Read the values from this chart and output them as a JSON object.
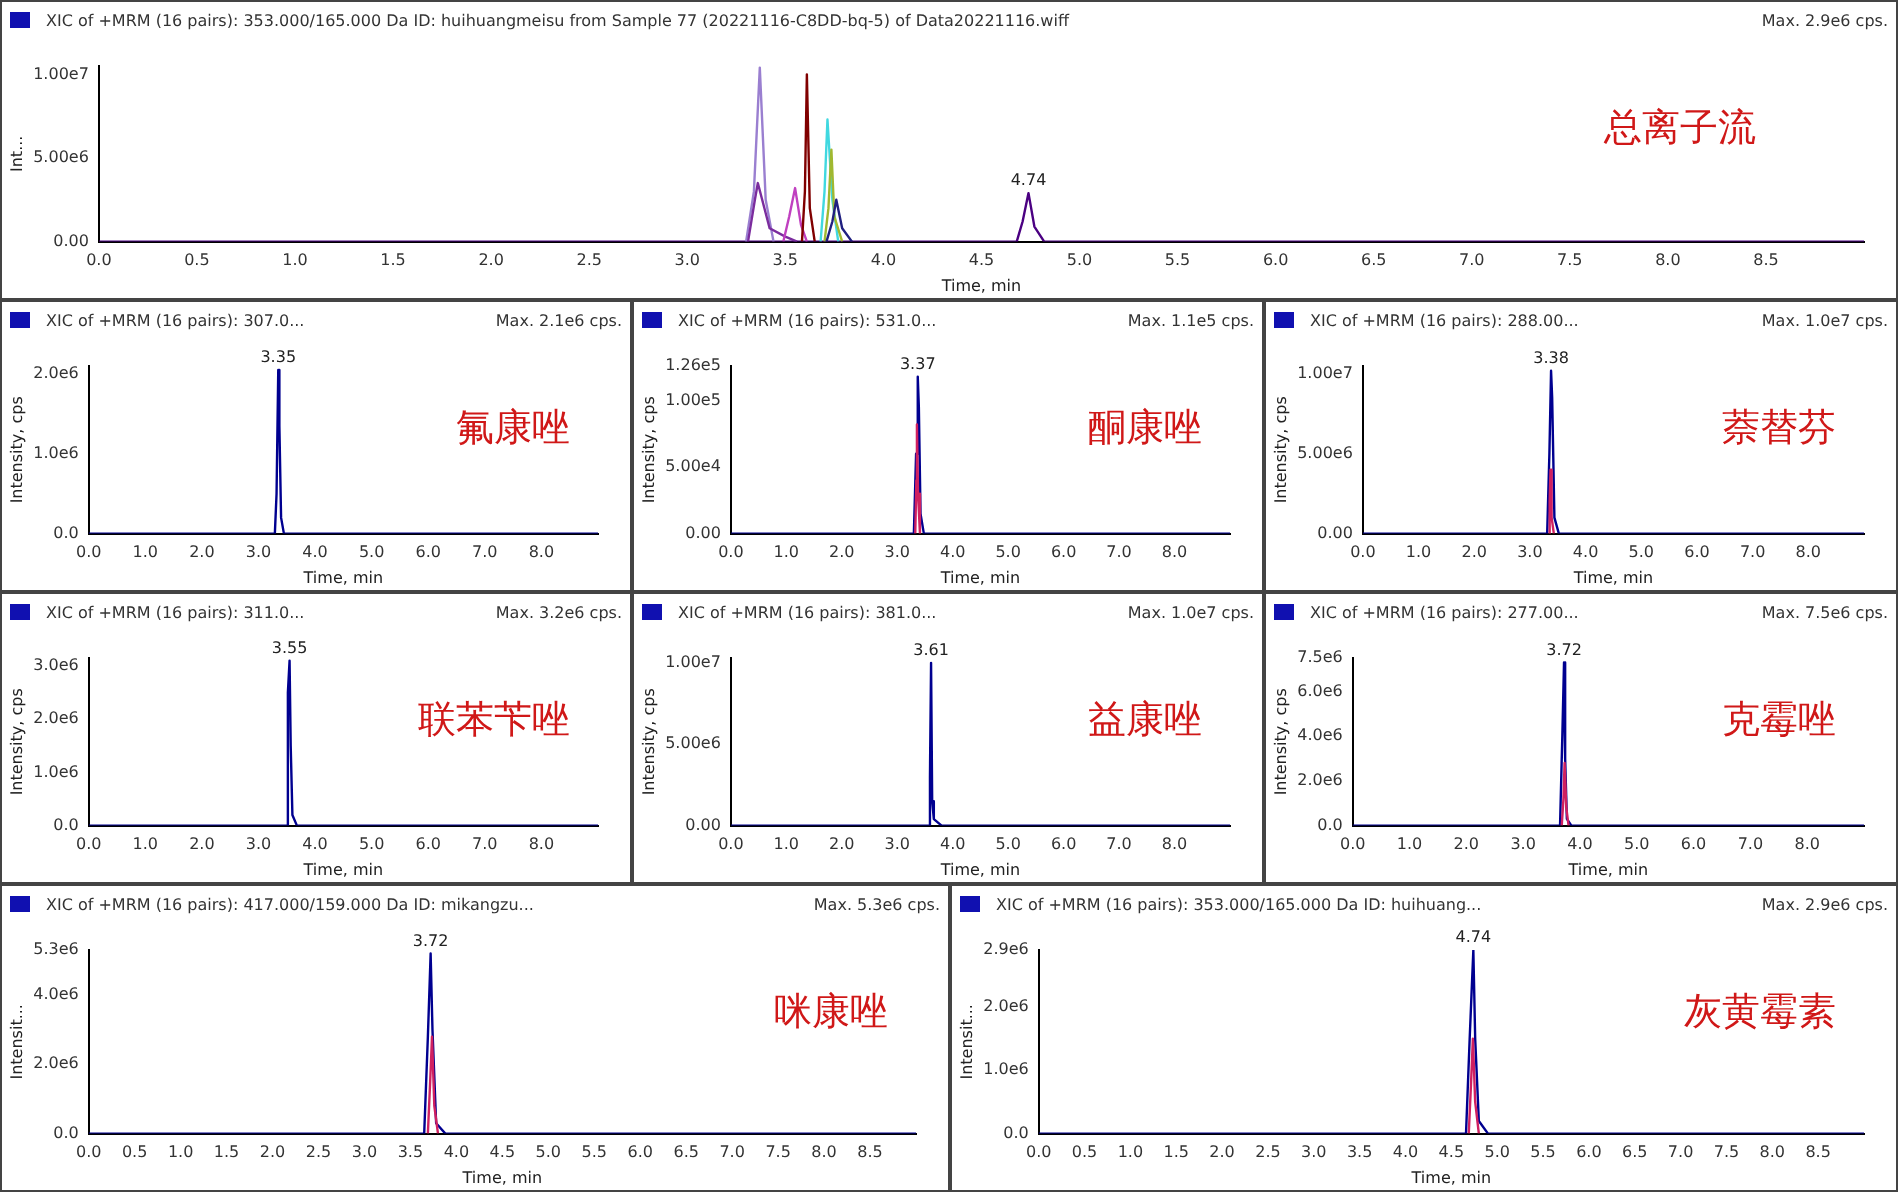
{
  "chart_data": [
    {
      "type": "line",
      "title": "XIC of +MRM (16 pairs): 353.000/165.000 Da ID: huihuangmeisu from Sample 77 (20221116-C8DD-bq-5) of Data20221116.wiff",
      "subtitle": "Max. 2.9e6 cps.",
      "xlabel": "Time, min",
      "ylabel": "Int...",
      "annotations": [
        "总离子流",
        {
          "text": "4.74",
          "x": 4.74,
          "y": 2900000
        }
      ],
      "xlim": [
        0,
        9
      ],
      "ylim": [
        0,
        10500000
      ],
      "xticks": [
        {
          "value": 0,
          "label": "0.0"
        },
        0.5,
        {
          "value": 1,
          "label": "1.0"
        },
        1.5,
        {
          "value": 2,
          "label": "2.0"
        },
        2.5,
        {
          "value": 3,
          "label": "3.0"
        },
        3.5,
        {
          "value": 4,
          "label": "4.0"
        },
        4.5,
        {
          "value": 5,
          "label": "5.0"
        },
        5.5,
        {
          "value": 6,
          "label": "6.0"
        },
        6.5,
        {
          "value": 7,
          "label": "7.0"
        },
        7.5,
        {
          "value": 8,
          "label": "8.0"
        },
        8.5
      ],
      "yticks": [
        {
          "value": 0,
          "label": "0.00"
        },
        {
          "value": 5000000,
          "label": "5.00e6"
        },
        {
          "value": 10000000,
          "label": "1.00e7"
        }
      ],
      "grid": false,
      "series": [
        {
          "color": "#4b0082",
          "x": [
            0,
            4.68,
            4.71,
            4.74,
            4.77,
            4.82,
            9
          ],
          "values": [
            0,
            0,
            1200000,
            2900000,
            900000,
            0,
            0
          ]
        },
        {
          "color": "#9a7fd0",
          "x": [
            3.3,
            3.34,
            3.37,
            3.4,
            3.44
          ],
          "values": [
            0,
            3000000,
            10400000,
            2500000,
            0
          ]
        },
        {
          "color": "#7b2c9e",
          "x": [
            3.31,
            3.345,
            3.36,
            3.42,
            3.5,
            3.56
          ],
          "values": [
            0,
            2500000,
            3500000,
            800000,
            300000,
            0
          ]
        },
        {
          "color": "#c040c0",
          "x": [
            3.49,
            3.52,
            3.55,
            3.58,
            3.61
          ],
          "values": [
            0,
            1500000,
            3200000,
            1000000,
            0
          ]
        },
        {
          "color": "#800000",
          "x": [
            3.585,
            3.6,
            3.61,
            3.625,
            3.65
          ],
          "values": [
            0,
            3000000,
            10000000,
            2000000,
            0
          ]
        },
        {
          "color": "#40d8e0",
          "x": [
            3.68,
            3.7,
            3.715,
            3.74,
            3.77
          ],
          "values": [
            0,
            3000000,
            7300000,
            2500000,
            0
          ]
        },
        {
          "color": "#a0b830",
          "x": [
            3.7,
            3.72,
            3.735,
            3.75,
            3.79
          ],
          "values": [
            0,
            2000000,
            5500000,
            1500000,
            0
          ]
        },
        {
          "color": "#202080",
          "x": [
            3.71,
            3.74,
            3.76,
            3.79,
            3.84
          ],
          "values": [
            0,
            1200000,
            2500000,
            800000,
            0
          ]
        }
      ]
    },
    {
      "type": "line",
      "title": "XIC of +MRM (16 pairs): 307.0...",
      "subtitle": "Max. 2.1e6 cps.",
      "xlabel": "Time, min",
      "ylabel": "Intensity, cps",
      "annotations": [
        "氟康唑",
        {
          "text": "3.35",
          "x": 3.35,
          "y": 2050000
        }
      ],
      "xlim": [
        0,
        9
      ],
      "ylim": [
        0,
        2100000
      ],
      "xticks": [
        {
          "value": 0,
          "label": "0.0"
        },
        {
          "value": 1,
          "label": "1.0"
        },
        {
          "value": 2,
          "label": "2.0"
        },
        {
          "value": 3,
          "label": "3.0"
        },
        {
          "value": 4,
          "label": "4.0"
        },
        {
          "value": 5,
          "label": "5.0"
        },
        {
          "value": 6,
          "label": "6.0"
        },
        {
          "value": 7,
          "label": "7.0"
        },
        {
          "value": 8,
          "label": "8.0"
        }
      ],
      "yticks": [
        {
          "value": 0,
          "label": "0.0"
        },
        {
          "value": 1000000,
          "label": "1.0e6"
        },
        {
          "value": 2000000,
          "label": "2.0e6"
        }
      ],
      "grid": false,
      "series": [
        {
          "color": "#000090",
          "x": [
            0,
            3.29,
            3.32,
            3.35,
            3.37,
            3.4,
            3.45,
            9
          ],
          "values": [
            0,
            0,
            500000,
            2050000,
            1350000,
            200000,
            0,
            0
          ]
        }
      ]
    },
    {
      "type": "line",
      "title": "XIC of +MRM (16 pairs): 531.0...",
      "subtitle": "Max. 1.1e5 cps.",
      "xlabel": "Time, min",
      "ylabel": "Intensity, cps",
      "annotations": [
        "酮康唑",
        {
          "text": "3.37",
          "x": 3.37,
          "y": 118000
        }
      ],
      "xlim": [
        0,
        9
      ],
      "ylim": [
        0,
        126000
      ],
      "xticks": [
        {
          "value": 0,
          "label": "0.0"
        },
        {
          "value": 1,
          "label": "1.0"
        },
        {
          "value": 2,
          "label": "2.0"
        },
        {
          "value": 3,
          "label": "3.0"
        },
        {
          "value": 4,
          "label": "4.0"
        },
        {
          "value": 5,
          "label": "5.0"
        },
        {
          "value": 6,
          "label": "6.0"
        },
        {
          "value": 7,
          "label": "7.0"
        },
        {
          "value": 8,
          "label": "8.0"
        }
      ],
      "yticks": [
        {
          "value": 0,
          "label": "0.00"
        },
        {
          "value": 50000,
          "label": "5.00e4"
        },
        {
          "value": 100000,
          "label": "1.00e5"
        },
        {
          "value": 126000,
          "label": "1.26e5"
        }
      ],
      "grid": false,
      "series": [
        {
          "color": "#000090",
          "x": [
            0,
            3.3,
            3.34,
            3.37,
            3.39,
            3.42,
            3.48,
            9
          ],
          "values": [
            0,
            0,
            60000,
            118000,
            95000,
            15000,
            0,
            0
          ]
        },
        {
          "color": "#d02060",
          "x": [
            3.325,
            3.345,
            3.355,
            3.375,
            3.41
          ],
          "values": [
            0,
            40000,
            82000,
            30000,
            0
          ]
        }
      ]
    },
    {
      "type": "line",
      "title": "XIC of +MRM (16 pairs): 288.00...",
      "subtitle": "Max. 1.0e7 cps.",
      "xlabel": "Time, min",
      "ylabel": "Intensity, cps",
      "annotations": [
        "萘替芬",
        {
          "text": "3.38",
          "x": 3.38,
          "y": 10200000
        }
      ],
      "xlim": [
        0,
        9
      ],
      "ylim": [
        0,
        10500000
      ],
      "xticks": [
        {
          "value": 0,
          "label": "0.0"
        },
        {
          "value": 1,
          "label": "1.0"
        },
        {
          "value": 2,
          "label": "2.0"
        },
        {
          "value": 3,
          "label": "3.0"
        },
        {
          "value": 4,
          "label": "4.0"
        },
        {
          "value": 5,
          "label": "5.0"
        },
        {
          "value": 6,
          "label": "6.0"
        },
        {
          "value": 7,
          "label": "7.0"
        },
        {
          "value": 8,
          "label": "8.0"
        }
      ],
      "yticks": [
        {
          "value": 0,
          "label": "0.00"
        },
        {
          "value": 5000000,
          "label": "5.00e6"
        },
        {
          "value": 10000000,
          "label": "1.00e7"
        }
      ],
      "grid": false,
      "series": [
        {
          "color": "#000090",
          "x": [
            0,
            3.31,
            3.35,
            3.38,
            3.4,
            3.44,
            3.52,
            9
          ],
          "values": [
            0,
            0,
            5000000,
            10200000,
            8500000,
            1000000,
            0,
            0
          ]
        },
        {
          "color": "#d02060",
          "x": [
            3.335,
            3.355,
            3.37,
            3.39,
            3.43
          ],
          "values": [
            0,
            2000000,
            4000000,
            1000000,
            0
          ]
        }
      ]
    },
    {
      "type": "line",
      "title": "XIC of +MRM (16 pairs): 311.0...",
      "subtitle": "Max. 3.2e6 cps.",
      "xlabel": "Time, min",
      "ylabel": "Intensity, cps",
      "annotations": [
        "联苯苄唑",
        {
          "text": "3.55",
          "x": 3.55,
          "y": 3100000
        }
      ],
      "xlim": [
        0,
        9
      ],
      "ylim": [
        0,
        3150000
      ],
      "xticks": [
        {
          "value": 0,
          "label": "0.0"
        },
        {
          "value": 1,
          "label": "1.0"
        },
        {
          "value": 2,
          "label": "2.0"
        },
        {
          "value": 3,
          "label": "3.0"
        },
        {
          "value": 4,
          "label": "4.0"
        },
        {
          "value": 5,
          "label": "5.0"
        },
        {
          "value": 6,
          "label": "6.0"
        },
        {
          "value": 7,
          "label": "7.0"
        },
        {
          "value": 8,
          "label": "8.0"
        }
      ],
      "yticks": [
        {
          "value": 0,
          "label": "0.0"
        },
        {
          "value": 1000000,
          "label": "1.0e6"
        },
        {
          "value": 2000000,
          "label": "2.0e6"
        },
        {
          "value": 3000000,
          "label": "3.0e6"
        }
      ],
      "grid": false,
      "series": [
        {
          "color": "#000090",
          "x": [
            0,
            3.49,
            3.52,
            3.55,
            3.57,
            3.6,
            3.68,
            9
          ],
          "values": [
            0,
            0,
            2500000,
            3100000,
            1500000,
            200000,
            0,
            0
          ]
        }
      ]
    },
    {
      "type": "line",
      "title": "XIC of +MRM (16 pairs): 381.0...",
      "subtitle": "Max. 1.0e7 cps.",
      "xlabel": "Time, min",
      "ylabel": "Intensity, cps",
      "annotations": [
        "益康唑",
        {
          "text": "3.61",
          "x": 3.61,
          "y": 10000000
        }
      ],
      "xlim": [
        0,
        9
      ],
      "ylim": [
        0,
        10300000
      ],
      "xticks": [
        {
          "value": 0,
          "label": "0.0"
        },
        {
          "value": 1,
          "label": "1.0"
        },
        {
          "value": 2,
          "label": "2.0"
        },
        {
          "value": 3,
          "label": "3.0"
        },
        {
          "value": 4,
          "label": "4.0"
        },
        {
          "value": 5,
          "label": "5.0"
        },
        {
          "value": 6,
          "label": "6.0"
        },
        {
          "value": 7,
          "label": "7.0"
        },
        {
          "value": 8,
          "label": "8.0"
        }
      ],
      "yticks": [
        {
          "value": 0,
          "label": "0.00"
        },
        {
          "value": 5000000,
          "label": "5.00e6"
        },
        {
          "value": 10000000,
          "label": "1.00e7"
        }
      ],
      "grid": false,
      "series": [
        {
          "color": "#000090",
          "x": [
            0,
            3.56,
            3.59,
            3.61,
            3.63,
            3.66,
            3.8,
            9
          ],
          "values": [
            0,
            0,
            3000000,
            10000000,
            1500000,
            400000,
            0,
            0
          ]
        }
      ]
    },
    {
      "type": "line",
      "title": "XIC of +MRM (16 pairs): 277.00...",
      "subtitle": "Max. 7.5e6 cps.",
      "xlabel": "Time, min",
      "ylabel": "Intensity, cps",
      "annotations": [
        "克霉唑",
        {
          "text": "3.72",
          "x": 3.72,
          "y": 7300000
        }
      ],
      "xlim": [
        0,
        9
      ],
      "ylim": [
        0,
        7500000
      ],
      "xticks": [
        {
          "value": 0,
          "label": "0.0"
        },
        {
          "value": 1,
          "label": "1.0"
        },
        {
          "value": 2,
          "label": "2.0"
        },
        {
          "value": 3,
          "label": "3.0"
        },
        {
          "value": 4,
          "label": "4.0"
        },
        {
          "value": 5,
          "label": "5.0"
        },
        {
          "value": 6,
          "label": "6.0"
        },
        {
          "value": 7,
          "label": "7.0"
        },
        {
          "value": 8,
          "label": "8.0"
        }
      ],
      "yticks": [
        {
          "value": 0,
          "label": "0.0"
        },
        {
          "value": 2000000,
          "label": "2.0e6"
        },
        {
          "value": 4000000,
          "label": "4.0e6"
        },
        {
          "value": 6000000,
          "label": "6.0e6"
        },
        {
          "value": 7500000,
          "label": "7.5e6"
        }
      ],
      "grid": false,
      "series": [
        {
          "color": "#000090",
          "x": [
            0,
            3.65,
            3.69,
            3.72,
            3.74,
            3.77,
            3.85,
            9
          ],
          "values": [
            0,
            0,
            4000000,
            7300000,
            3000000,
            300000,
            0,
            0
          ]
        },
        {
          "color": "#d02060",
          "x": [
            3.68,
            3.71,
            3.73,
            3.76,
            3.8
          ],
          "values": [
            0,
            1200000,
            2800000,
            800000,
            0
          ]
        }
      ]
    },
    {
      "type": "line",
      "title": "XIC of +MRM (16 pairs): 417.000/159.000 Da ID: mikangzu...",
      "subtitle": "Max. 5.3e6 cps.",
      "xlabel": "Time, min",
      "ylabel": "Intensit...",
      "annotations": [
        "咪康唑",
        {
          "text": "3.72",
          "x": 3.72,
          "y": 5200000
        }
      ],
      "xlim": [
        0,
        9
      ],
      "ylim": [
        0,
        5300000
      ],
      "xticks": [
        {
          "value": 0,
          "label": "0.0"
        },
        0.5,
        {
          "value": 1,
          "label": "1.0"
        },
        1.5,
        {
          "value": 2,
          "label": "2.0"
        },
        2.5,
        {
          "value": 3,
          "label": "3.0"
        },
        3.5,
        {
          "value": 4,
          "label": "4.0"
        },
        4.5,
        {
          "value": 5,
          "label": "5.0"
        },
        5.5,
        {
          "value": 6,
          "label": "6.0"
        },
        6.5,
        {
          "value": 7,
          "label": "7.0"
        },
        7.5,
        {
          "value": 8,
          "label": "8.0"
        },
        8.5
      ],
      "yticks": [
        {
          "value": 0,
          "label": "0.0"
        },
        {
          "value": 2000000,
          "label": "2.0e6"
        },
        {
          "value": 4000000,
          "label": "4.0e6"
        },
        {
          "value": 5300000,
          "label": "5.3e6"
        }
      ],
      "grid": false,
      "series": [
        {
          "color": "#000090",
          "x": [
            0,
            3.65,
            3.69,
            3.72,
            3.74,
            3.78,
            3.88,
            9
          ],
          "values": [
            0,
            0,
            2800000,
            5200000,
            3000000,
            300000,
            0,
            0
          ]
        },
        {
          "color": "#d02060",
          "x": [
            3.69,
            3.715,
            3.735,
            3.76,
            3.8
          ],
          "values": [
            0,
            1500000,
            2800000,
            800000,
            0
          ]
        }
      ]
    },
    {
      "type": "line",
      "title": "XIC of +MRM (16 pairs): 353.000/165.000 Da ID: huihuang...",
      "subtitle": "Max. 2.9e6 cps.",
      "xlabel": "Time, min",
      "ylabel": "Intensit...",
      "annotations": [
        "灰黄霉素",
        {
          "text": "4.74",
          "x": 4.74,
          "y": 2900000
        }
      ],
      "xlim": [
        0,
        9
      ],
      "ylim": [
        0,
        2900000
      ],
      "xticks": [
        {
          "value": 0,
          "label": "0.0"
        },
        0.5,
        {
          "value": 1,
          "label": "1.0"
        },
        1.5,
        {
          "value": 2,
          "label": "2.0"
        },
        2.5,
        {
          "value": 3,
          "label": "3.0"
        },
        3.5,
        {
          "value": 4,
          "label": "4.0"
        },
        4.5,
        {
          "value": 5,
          "label": "5.0"
        },
        5.5,
        {
          "value": 6,
          "label": "6.0"
        },
        6.5,
        {
          "value": 7,
          "label": "7.0"
        },
        7.5,
        {
          "value": 8,
          "label": "8.0"
        },
        8.5
      ],
      "yticks": [
        {
          "value": 0,
          "label": "0.0"
        },
        {
          "value": 1000000,
          "label": "1.0e6"
        },
        {
          "value": 2000000,
          "label": "2.0e6"
        },
        {
          "value": 2900000,
          "label": "2.9e6"
        }
      ],
      "grid": false,
      "series": [
        {
          "color": "#000090",
          "x": [
            0,
            4.66,
            4.7,
            4.74,
            4.76,
            4.8,
            4.9,
            9
          ],
          "values": [
            0,
            0,
            1500000,
            2900000,
            1500000,
            200000,
            0,
            0
          ]
        },
        {
          "color": "#d02060",
          "x": [
            4.69,
            4.715,
            4.735,
            4.76,
            4.8
          ],
          "values": [
            0,
            800000,
            1500000,
            500000,
            0
          ]
        }
      ]
    }
  ]
}
